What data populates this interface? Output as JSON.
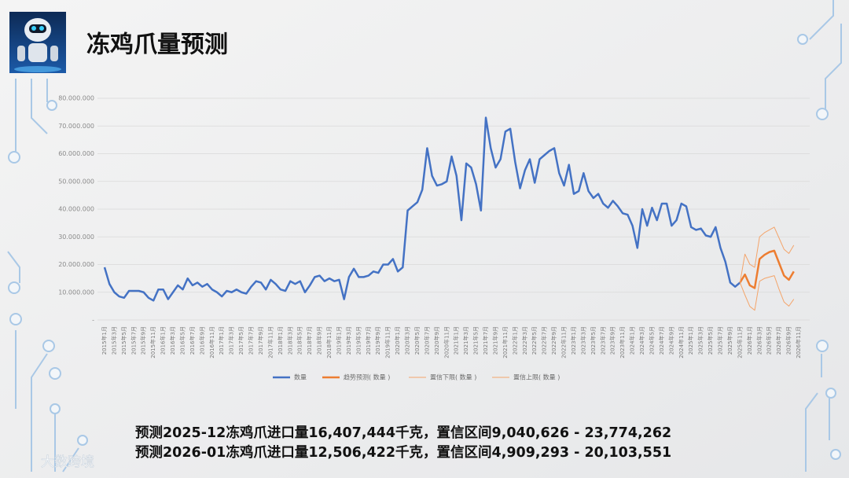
{
  "chart_data": {
    "type": "line",
    "title": "冻鸡爪量预测",
    "categories": [
      "2015年1月",
      null,
      "2015年3月",
      null,
      "2015年5月",
      null,
      "2015年7月",
      null,
      "2015年9月",
      null,
      "2015年11月",
      null,
      "2016年1月",
      null,
      "2016年3月",
      null,
      "2016年5月",
      null,
      "2016年7月",
      null,
      "2016年9月",
      null,
      "2016年11月",
      null,
      "2017年1月",
      null,
      "2017年3月",
      null,
      "2017年5月",
      null,
      "2017年7月",
      null,
      "2017年9月",
      null,
      "2017年11月",
      null,
      "2018年1月",
      null,
      "2018年3月",
      null,
      "2018年5月",
      null,
      "2018年7月",
      null,
      "2018年9月",
      null,
      "2018年11月",
      null,
      "2019年1月",
      null,
      "2019年3月",
      null,
      "2019年5月",
      null,
      "2019年7月",
      null,
      "2019年9月",
      null,
      "2019年11月",
      null,
      "2020年1月",
      null,
      "2020年3月",
      null,
      "2020年5月",
      null,
      "2020年7月",
      null,
      "2020年9月",
      null,
      "2020年11月",
      null,
      "2021年1月",
      null,
      "2021年3月",
      null,
      "2021年5月",
      null,
      "2021年7月",
      null,
      "2021年9月",
      null,
      "2021年11月",
      null,
      "2022年1月",
      null,
      "2022年3月",
      null,
      "2022年5月",
      null,
      "2022年7月",
      null,
      "2022年9月",
      null,
      "2022年11月",
      null,
      "2023年1月",
      null,
      "2023年3月",
      null,
      "2023年5月",
      null,
      "2023年7月",
      null,
      "2023年9月",
      null,
      "2023年11月",
      null,
      "2024年1月",
      null,
      "2024年3月",
      null,
      "2024年5月",
      null,
      "2024年7月",
      null,
      "2024年9月",
      null,
      "2024年11月",
      null,
      "2025年1月",
      null,
      "2025年3月",
      null,
      "2025年5月",
      null,
      "2025年7月",
      null,
      "2025年9月",
      null,
      "2025年11月",
      null,
      "2026年1月",
      null,
      "2026年3月",
      null,
      "2026年5月",
      null,
      "2026年7月",
      null,
      "2026年9月",
      null,
      "2026年11月"
    ],
    "series": [
      {
        "name": "数量",
        "color": "#4472c4",
        "width": 2.5,
        "values": [
          19000000,
          13000000,
          10000000,
          8500000,
          8000000,
          10500000,
          10500000,
          10500000,
          10000000,
          8000000,
          7000000,
          11000000,
          11000000,
          7500000,
          10000000,
          12500000,
          11000000,
          15000000,
          12500000,
          13500000,
          12000000,
          13000000,
          11000000,
          10000000,
          8500000,
          10500000,
          10000000,
          11000000,
          10000000,
          9500000,
          12000000,
          14000000,
          13500000,
          11000000,
          14500000,
          13000000,
          11000000,
          10500000,
          14000000,
          13000000,
          14000000,
          10000000,
          12500000,
          15500000,
          16000000,
          14000000,
          15000000,
          14000000,
          14500000,
          7500000,
          15500000,
          18500000,
          15500000,
          15500000,
          16000000,
          17500000,
          17000000,
          20000000,
          20000000,
          22000000,
          17500000,
          19000000,
          39500000,
          41000000,
          42500000,
          47000000,
          62000000,
          52000000,
          48500000,
          49000000,
          50000000,
          59000000,
          52000000,
          36000000,
          56500000,
          55000000,
          49000000,
          39500000,
          73000000,
          62000000,
          55000000,
          58000000,
          68000000,
          69000000,
          57000000,
          47500000,
          54000000,
          58000000,
          49500000,
          58000000,
          59500000,
          61000000,
          62000000,
          53000000,
          48500000,
          56000000,
          45500000,
          46500000,
          53000000,
          46500000,
          44000000,
          45500000,
          42000000,
          40500000,
          43000000,
          41000000,
          38500000,
          38000000,
          34000000,
          26000000,
          40000000,
          34000000,
          40500000,
          36000000,
          42000000,
          42000000,
          34000000,
          36000000,
          42000000,
          41000000,
          33500000,
          32500000,
          33000000,
          30500000,
          30000000,
          33500000,
          26000000,
          21000000,
          13500000,
          12000000,
          13500000,
          null,
          null,
          null,
          null,
          null,
          null,
          null,
          null,
          null,
          null,
          null,
          null
        ]
      },
      {
        "name": "趋势预测( 数量 )",
        "color": "#ed7d31",
        "width": 2.5,
        "values": [
          null,
          null,
          null,
          null,
          null,
          null,
          null,
          null,
          null,
          null,
          null,
          null,
          null,
          null,
          null,
          null,
          null,
          null,
          null,
          null,
          null,
          null,
          null,
          null,
          null,
          null,
          null,
          null,
          null,
          null,
          null,
          null,
          null,
          null,
          null,
          null,
          null,
          null,
          null,
          null,
          null,
          null,
          null,
          null,
          null,
          null,
          null,
          null,
          null,
          null,
          null,
          null,
          null,
          null,
          null,
          null,
          null,
          null,
          null,
          null,
          null,
          null,
          null,
          null,
          null,
          null,
          null,
          null,
          null,
          null,
          null,
          null,
          null,
          null,
          null,
          null,
          null,
          null,
          null,
          null,
          null,
          null,
          null,
          null,
          null,
          null,
          null,
          null,
          null,
          null,
          null,
          null,
          null,
          null,
          null,
          null,
          null,
          null,
          null,
          null,
          null,
          null,
          null,
          null,
          null,
          null,
          null,
          null,
          null,
          null,
          null,
          null,
          null,
          null,
          null,
          null,
          null,
          null,
          null,
          null,
          null,
          null,
          null,
          null,
          null,
          null,
          null,
          null,
          null,
          null,
          13500000,
          16407444,
          12506422,
          11500000,
          22000000,
          23500000,
          24500000,
          25000000,
          20500000,
          16000000,
          14500000,
          17500000,
          null
        ]
      },
      {
        "name": "置信下限( 数量 )",
        "color": "#f4a46a",
        "width": 1,
        "values": [
          null,
          null,
          null,
          null,
          null,
          null,
          null,
          null,
          null,
          null,
          null,
          null,
          null,
          null,
          null,
          null,
          null,
          null,
          null,
          null,
          null,
          null,
          null,
          null,
          null,
          null,
          null,
          null,
          null,
          null,
          null,
          null,
          null,
          null,
          null,
          null,
          null,
          null,
          null,
          null,
          null,
          null,
          null,
          null,
          null,
          null,
          null,
          null,
          null,
          null,
          null,
          null,
          null,
          null,
          null,
          null,
          null,
          null,
          null,
          null,
          null,
          null,
          null,
          null,
          null,
          null,
          null,
          null,
          null,
          null,
          null,
          null,
          null,
          null,
          null,
          null,
          null,
          null,
          null,
          null,
          null,
          null,
          null,
          null,
          null,
          null,
          null,
          null,
          null,
          null,
          null,
          null,
          null,
          null,
          null,
          null,
          null,
          null,
          null,
          null,
          null,
          null,
          null,
          null,
          null,
          null,
          null,
          null,
          null,
          null,
          null,
          null,
          null,
          null,
          null,
          null,
          null,
          null,
          null,
          null,
          null,
          null,
          null,
          null,
          null,
          null,
          null,
          null,
          null,
          null,
          13500000,
          9040626,
          4909293,
          3500000,
          14000000,
          15000000,
          15500000,
          16000000,
          11000000,
          6500000,
          5000000,
          7500000,
          null
        ]
      },
      {
        "name": "置信上限( 数量 )",
        "color": "#f4a46a",
        "width": 1,
        "values": [
          null,
          null,
          null,
          null,
          null,
          null,
          null,
          null,
          null,
          null,
          null,
          null,
          null,
          null,
          null,
          null,
          null,
          null,
          null,
          null,
          null,
          null,
          null,
          null,
          null,
          null,
          null,
          null,
          null,
          null,
          null,
          null,
          null,
          null,
          null,
          null,
          null,
          null,
          null,
          null,
          null,
          null,
          null,
          null,
          null,
          null,
          null,
          null,
          null,
          null,
          null,
          null,
          null,
          null,
          null,
          null,
          null,
          null,
          null,
          null,
          null,
          null,
          null,
          null,
          null,
          null,
          null,
          null,
          null,
          null,
          null,
          null,
          null,
          null,
          null,
          null,
          null,
          null,
          null,
          null,
          null,
          null,
          null,
          null,
          null,
          null,
          null,
          null,
          null,
          null,
          null,
          null,
          null,
          null,
          null,
          null,
          null,
          null,
          null,
          null,
          null,
          null,
          null,
          null,
          null,
          null,
          null,
          null,
          null,
          null,
          null,
          null,
          null,
          null,
          null,
          null,
          null,
          null,
          null,
          null,
          null,
          null,
          null,
          null,
          null,
          null,
          null,
          null,
          null,
          null,
          13500000,
          23774262,
          20103551,
          19000000,
          30000000,
          31500000,
          32500000,
          33500000,
          29500000,
          25500000,
          24000000,
          27000000,
          null
        ]
      }
    ],
    "ylim": [
      0,
      80000000
    ],
    "yticks": [
      {
        "value": 0,
        "label": "-"
      },
      {
        "value": 10000000,
        "label": "10.000.000"
      },
      {
        "value": 20000000,
        "label": "20.000.000"
      },
      {
        "value": 30000000,
        "label": "30.000.000"
      },
      {
        "value": 40000000,
        "label": "40.000.000"
      },
      {
        "value": 50000000,
        "label": "50.000.000"
      },
      {
        "value": 60000000,
        "label": "60.000.000"
      },
      {
        "value": 70000000,
        "label": "70.000.000"
      },
      {
        "value": 80000000,
        "label": "80.000.000"
      }
    ],
    "grid": true,
    "legend": "bottom"
  },
  "notes": [
    "预测2025-12冻鸡爪进口量16,407,444千克，置信区间9,040,626 - 23,774,262",
    "预测2026-01冻鸡爪进口量12,506,422千克，置信区间4,909,293 - 20,103,551"
  ],
  "watermark": "大数跨境"
}
